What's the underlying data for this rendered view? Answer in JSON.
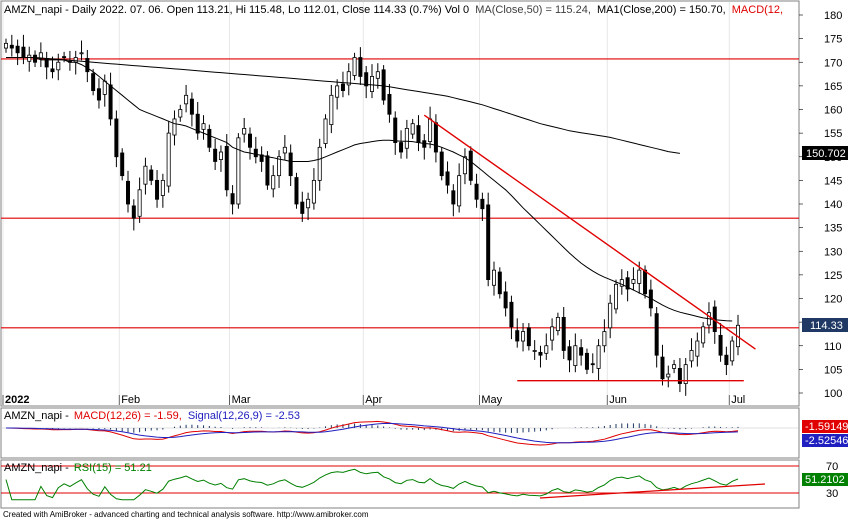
{
  "header": {
    "ticker": "AMZN_napi",
    "info": "Daily 2022. 07. 06. Open 113.21, Hi 115.48, Lo 112.01, Close 114.33 (0.7%) Vol 0",
    "ma50_label": "MA(Close,50) = 115.24,",
    "ma200_label": "MA1(Close,200) = 150.70,",
    "macd_cut": "MACD(12,"
  },
  "macd_title": {
    "prefix": "AMZN_napi -",
    "macd": "MACD(12,26) = -1.59,",
    "signal": "Signal(12,26,9) = -2.53"
  },
  "rsi_title": {
    "prefix": "AMZN_napi -",
    "rsi": "RSI(15) = 51.21"
  },
  "footer": "Created with AmiBroker - advanced charting and technical analysis software. http://www.amibroker.com",
  "tags": {
    "ma200": "150.702",
    "close": "114.33",
    "macd": "-1.59149",
    "signal": "-2.52546",
    "rsi": "51.2102"
  },
  "colors": {
    "price_line": "#000000",
    "ma50": "#000000",
    "ma200": "#000000",
    "support_resistance": "#e00000",
    "macd": "#e00000",
    "signal": "#2020c0",
    "rsi": "#008000"
  },
  "chart_data": [
    {
      "type": "candlestick",
      "ylim": [
        100,
        180
      ],
      "yticks": [
        100,
        105,
        110,
        115,
        120,
        125,
        130,
        135,
        140,
        145,
        150,
        155,
        160,
        165,
        170,
        175,
        180
      ],
      "x_labels": [
        {
          "label": "2022",
          "index": 0
        },
        {
          "label": "Feb",
          "index": 20
        },
        {
          "label": "Mar",
          "index": 39
        },
        {
          "label": "Apr",
          "index": 62
        },
        {
          "label": "May",
          "index": 82
        },
        {
          "label": "Jun",
          "index": 104
        },
        {
          "label": "Jul",
          "index": 125
        }
      ],
      "horizontal_lines": [
        170.7,
        137.0,
        113.8
      ],
      "trendlines": [
        {
          "from": [
            72,
            158.8
          ],
          "to": [
            129,
            109.3
          ]
        },
        {
          "from": [
            88,
            102.6
          ],
          "to": [
            127,
            102.6
          ]
        }
      ],
      "closes": [
        174,
        173,
        172,
        171,
        171.5,
        170,
        172,
        169,
        168,
        170,
        171,
        170,
        171,
        172,
        168,
        164,
        162,
        166,
        158,
        150,
        146,
        140,
        137,
        143,
        148,
        145,
        141,
        145,
        155,
        158,
        160,
        163,
        159,
        155,
        157,
        152,
        149,
        151,
        143,
        140,
        154,
        156,
        152,
        150,
        149,
        144,
        146,
        150,
        152,
        146,
        140,
        138,
        141,
        145,
        152,
        158,
        163,
        165,
        164,
        168,
        171,
        167,
        165,
        167,
        168,
        162,
        159,
        153,
        151,
        156,
        157,
        153,
        152,
        158,
        151,
        146,
        144,
        140,
        146,
        150,
        145,
        141,
        139,
        124,
        126,
        121,
        118,
        114,
        111,
        113,
        110,
        109,
        108,
        110,
        114,
        116,
        109,
        107,
        110,
        108,
        105,
        106,
        110,
        113,
        119,
        123,
        124,
        122,
        124,
        126,
        121,
        118,
        108,
        103,
        104,
        106,
        102,
        106,
        109,
        111,
        114,
        117,
        113,
        108,
        106,
        111,
        114.33
      ],
      "ma50": [
        171,
        171,
        171,
        171,
        171,
        171,
        170.5,
        170.5,
        170.5,
        170.5,
        170.5,
        170,
        170,
        169.5,
        168.8,
        168,
        167,
        166,
        165,
        164,
        163,
        162,
        161,
        160,
        159.5,
        159,
        158.5,
        158,
        157.5,
        157,
        156.8,
        156.5,
        156,
        155.5,
        155,
        154.5,
        154,
        153.5,
        153,
        152,
        151.5,
        151,
        150.8,
        150.5,
        150.3,
        150,
        149.8,
        149.5,
        149.3,
        149,
        149,
        149,
        149,
        149.2,
        149.5,
        150,
        150.5,
        151,
        151.5,
        152,
        152.5,
        152.8,
        153,
        153.2,
        153.4,
        153.5,
        153.5,
        153.4,
        153.3,
        153.3,
        153.2,
        153,
        152.8,
        152.7,
        152.4,
        152,
        151.5,
        151,
        150.4,
        149.8,
        149,
        148,
        147,
        146,
        145,
        144,
        143,
        141.8,
        140.5,
        139.2,
        138,
        136.8,
        135.6,
        134.4,
        133.2,
        132,
        130.8,
        129.6,
        128.5,
        127.5,
        126.6,
        125.8,
        125.1,
        124.5,
        124,
        123.5,
        123,
        122.4,
        121.8,
        121.2,
        120.6,
        120,
        119.3,
        118.6,
        118,
        117.5,
        117.1,
        116.8,
        116.5,
        116.2,
        115.9,
        115.7,
        115.5,
        115.4,
        115.3,
        115.24
      ],
      "ma200_start_index": 5,
      "ma200": [
        171,
        170.9,
        170.8,
        170.7,
        170.6,
        170.5,
        170.4,
        170.3,
        170.2,
        170.1,
        170,
        169.9,
        169.8,
        169.7,
        169.6,
        169.5,
        169.4,
        169.3,
        169.2,
        169.1,
        169,
        168.9,
        168.8,
        168.7,
        168.6,
        168.5,
        168.4,
        168.3,
        168.2,
        168.1,
        168,
        167.9,
        167.8,
        167.7,
        167.6,
        167.5,
        167.4,
        167.3,
        167.2,
        167.1,
        167,
        166.9,
        166.8,
        166.7,
        166.6,
        166.5,
        166.4,
        166.3,
        166.2,
        166.1,
        166,
        165.9,
        165.8,
        165.7,
        165.6,
        165.5,
        165.4,
        165.3,
        165.2,
        165.1,
        165,
        164.8,
        164.6,
        164.4,
        164.2,
        164,
        163.8,
        163.6,
        163.4,
        163.2,
        163,
        162.8,
        162.5,
        162.2,
        161.9,
        161.6,
        161.3,
        161,
        160.6,
        160.2,
        159.8,
        159.4,
        159,
        158.6,
        158.2,
        157.8,
        157.4,
        157,
        156.7,
        156.4,
        156.1,
        155.8,
        155.5,
        155.3,
        155.1,
        154.9,
        154.7,
        154.5,
        154.3,
        154.1,
        153.8,
        153.5,
        153.2,
        152.9,
        152.6,
        152.3,
        152,
        151.7,
        151.4,
        151.1,
        150.9,
        150.7
      ]
    },
    {
      "type": "line",
      "title": "MACD(12,26)",
      "series_names": [
        "MACD(12,26)",
        "Signal(12,26,9)"
      ],
      "macd_last": -1.59,
      "signal_last": -2.53,
      "zero_line": 0
    },
    {
      "type": "line",
      "title": "RSI(15)",
      "ylim": [
        30,
        70
      ],
      "yticks": [
        30,
        70
      ],
      "levels": [
        70,
        30
      ],
      "rsi_last": 51.21
    }
  ]
}
